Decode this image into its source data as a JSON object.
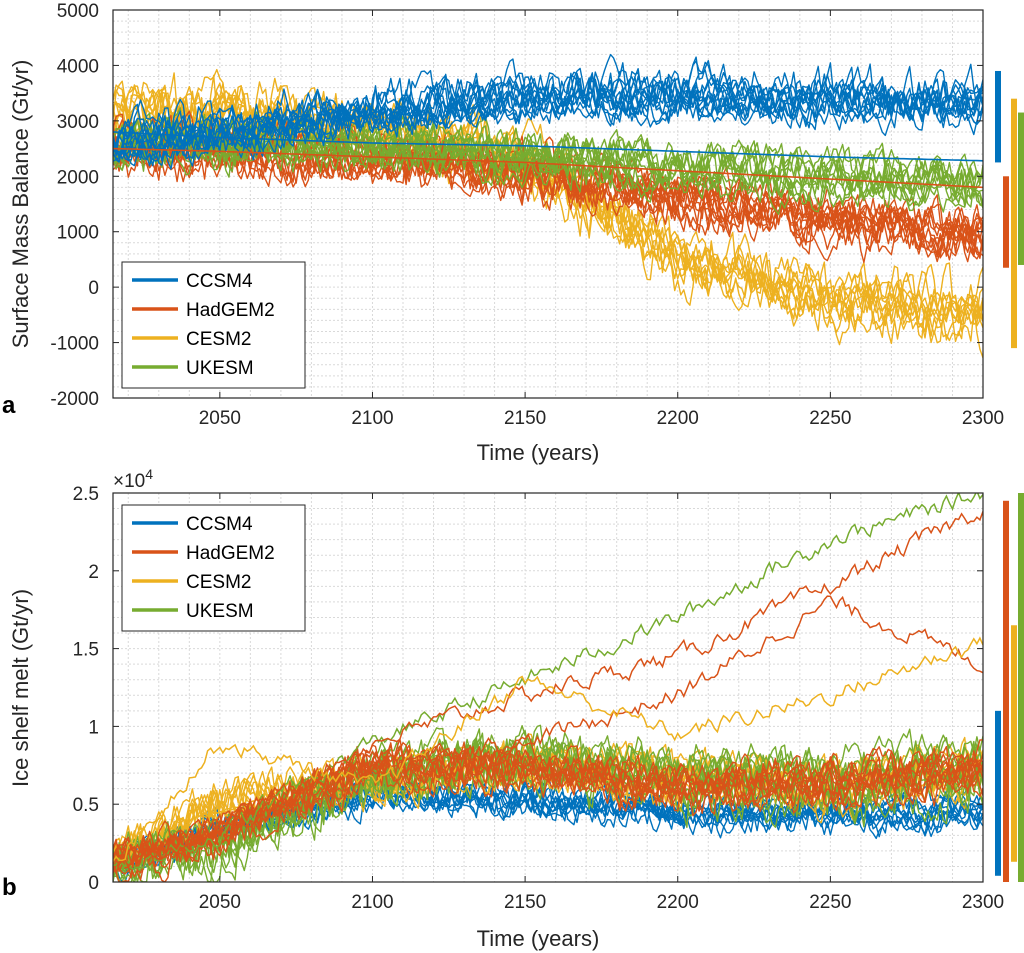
{
  "colors": {
    "CCSM4": "#0072BD",
    "HadGEM2": "#D95319",
    "CESM2": "#EDB120",
    "UKESM": "#77AC30"
  },
  "chart_data": [
    {
      "type": "line",
      "panel_label": "a",
      "xlabel": "Time (years)",
      "ylabel": "Surface Mass Balance (Gt/yr)",
      "xlim": [
        2015,
        2300
      ],
      "ylim": [
        -2000,
        5000
      ],
      "xticks": [
        2050,
        2100,
        2150,
        2200,
        2250,
        2300
      ],
      "yticks": [
        -2000,
        -1000,
        0,
        1000,
        2000,
        3000,
        4000,
        5000
      ],
      "ytick_labels": [
        "-2000",
        "-1000",
        "0",
        "1000",
        "2000",
        "3000",
        "4000",
        "5000"
      ],
      "exponent_label": "",
      "grid": true,
      "legend_position": "lower-left",
      "legend": [
        "CCSM4",
        "HadGEM2",
        "CESM2",
        "UKESM"
      ],
      "x_knots": [
        2015,
        2050,
        2100,
        2150,
        2200,
        2250,
        2300
      ],
      "series": [
        {
          "name": "CCSM4",
          "members": 12,
          "noise": 350,
          "trend": [
            2600,
            2800,
            3200,
            3450,
            3450,
            3400,
            3350
          ]
        },
        {
          "name": "HadGEM2",
          "members": 12,
          "noise": 380,
          "trend": [
            2500,
            2450,
            2300,
            2050,
            1600,
            1200,
            900
          ]
        },
        {
          "name": "CESM2",
          "members": 10,
          "noise": 450,
          "trend": [
            3200,
            3200,
            2900,
            2300,
            600,
            -200,
            -400
          ]
        },
        {
          "name": "UKESM",
          "members": 10,
          "noise": 380,
          "trend": [
            2600,
            2650,
            2600,
            2400,
            2200,
            2050,
            1900
          ]
        }
      ],
      "smooth_lines": [
        {
          "name": "CCSM4",
          "values": [
            2800,
            2700,
            2600,
            2550,
            2450,
            2350,
            2280
          ]
        },
        {
          "name": "HadGEM2",
          "values": [
            2500,
            2450,
            2350,
            2250,
            2100,
            1950,
            1800
          ]
        }
      ],
      "range_bars": [
        {
          "name": "CCSM4",
          "min": 2250,
          "max": 3900
        },
        {
          "name": "HadGEM2",
          "min": 350,
          "max": 2000
        },
        {
          "name": "CESM2",
          "min": -1100,
          "max": 3400
        },
        {
          "name": "UKESM",
          "min": 400,
          "max": 3150
        }
      ]
    },
    {
      "type": "line",
      "panel_label": "b",
      "xlabel": "Time (years)",
      "ylabel": "Ice shelf melt (Gt/yr)",
      "xlim": [
        2015,
        2300
      ],
      "ylim": [
        0,
        25000
      ],
      "xticks": [
        2050,
        2100,
        2150,
        2200,
        2250,
        2300
      ],
      "yticks": [
        0,
        5000,
        10000,
        15000,
        20000,
        25000
      ],
      "ytick_labels": [
        "0",
        "0.5",
        "1",
        "1.5",
        "2",
        "2.5"
      ],
      "exponent_label": "×10",
      "exponent_power": "4",
      "grid": true,
      "legend_position": "top-left",
      "legend": [
        "CCSM4",
        "HadGEM2",
        "CESM2",
        "UKESM"
      ],
      "x_knots": [
        2015,
        2050,
        2100,
        2150,
        2200,
        2250,
        2300
      ],
      "series": [
        {
          "name": "CCSM4",
          "members": 10,
          "noise": 900,
          "trend": [
            1200,
            3500,
            5800,
            5500,
            4800,
            4600,
            5000
          ]
        },
        {
          "name": "HadGEM2",
          "members": 10,
          "noise": 1200,
          "trend": [
            1200,
            3000,
            7500,
            7200,
            6000,
            6200,
            7000
          ]
        },
        {
          "name": "CESM2",
          "members": 10,
          "noise": 1300,
          "trend": [
            1500,
            5000,
            6500,
            7500,
            6500,
            6000,
            7000
          ]
        },
        {
          "name": "UKESM",
          "members": 9,
          "noise": 1600,
          "trend": [
            1000,
            2500,
            7000,
            8000,
            7000,
            6500,
            7500
          ]
        }
      ],
      "extra_lines": [
        {
          "name": "UKESM",
          "values": [
            800,
            3000,
            9000,
            13000,
            17000,
            22000,
            25000
          ]
        },
        {
          "name": "HadGEM2",
          "values": [
            1000,
            3500,
            9000,
            12000,
            14500,
            19000,
            24000
          ]
        },
        {
          "name": "HadGEM2",
          "values": [
            1200,
            4000,
            8000,
            9000,
            12000,
            18000,
            14000
          ]
        },
        {
          "name": "CESM2",
          "values": [
            1300,
            9000,
            6000,
            13000,
            9500,
            12000,
            15500
          ]
        }
      ],
      "range_bars": [
        {
          "name": "CCSM4",
          "min": 400,
          "max": 11000
        },
        {
          "name": "HadGEM2",
          "min": 0,
          "max": 24500
        },
        {
          "name": "CESM2",
          "min": 1300,
          "max": 16500
        },
        {
          "name": "UKESM",
          "min": 0,
          "max": 25000
        }
      ]
    }
  ]
}
